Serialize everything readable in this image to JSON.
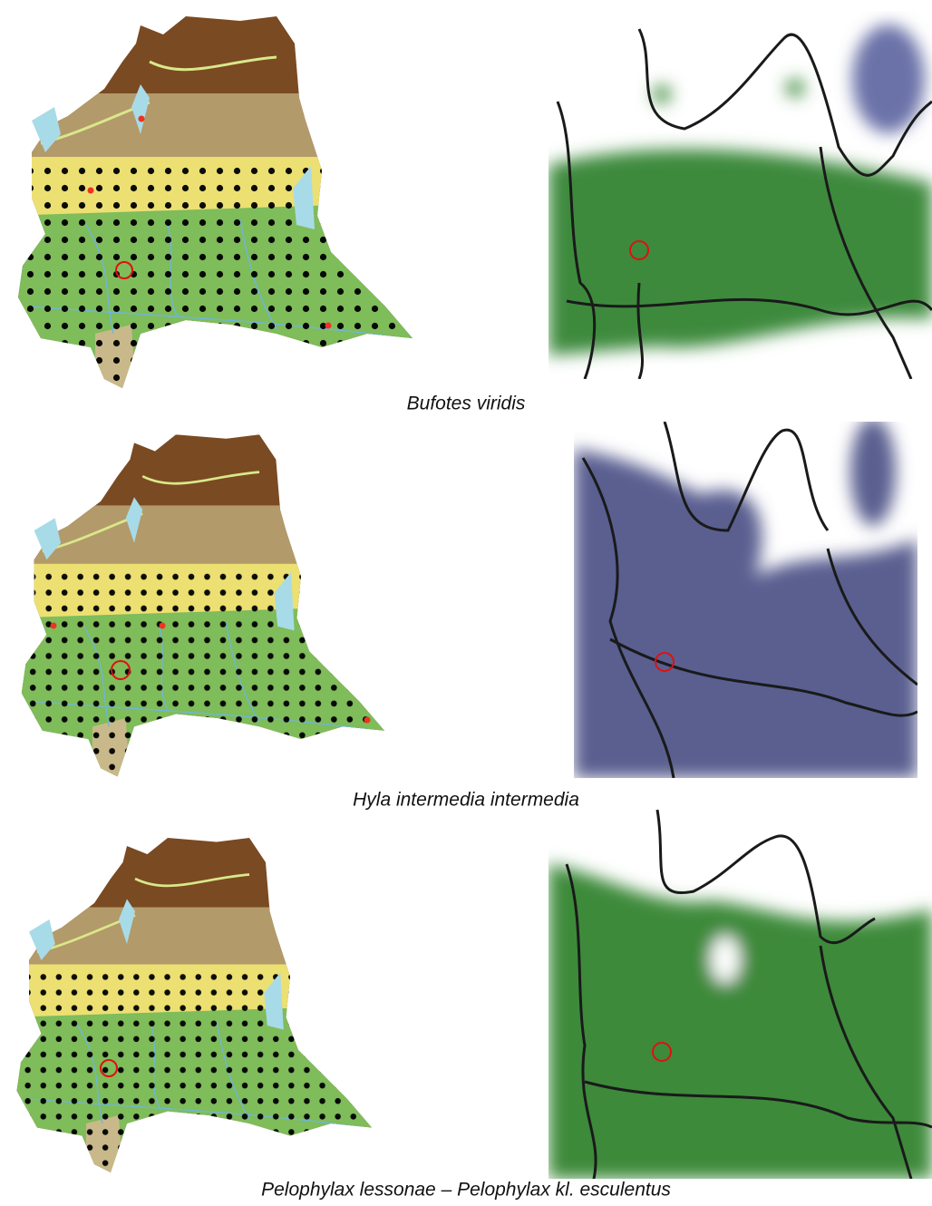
{
  "figure": {
    "panels": [
      {
        "caption": "Bufotes viridis"
      },
      {
        "caption": "Hyla intermedia intermedia"
      },
      {
        "caption": "Pelophylax lessonae – Pelophylax kl. esculentus"
      }
    ]
  }
}
